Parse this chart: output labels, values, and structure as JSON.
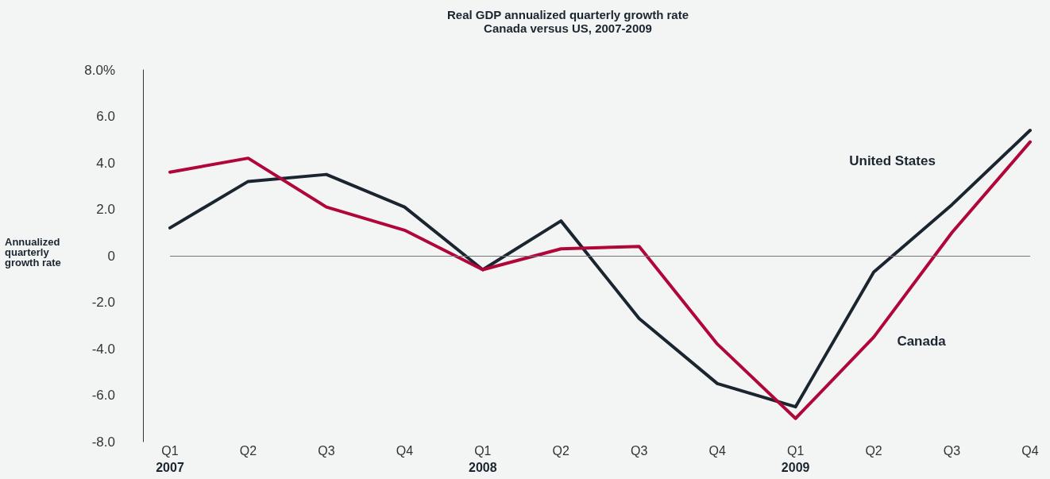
{
  "chart_data": {
    "type": "line",
    "title": "Real GDP annualized quarterly growth rate",
    "subtitle": "Canada versus US, 2007-2009",
    "ylabel": "Annualized quarterly growth rate",
    "categories": [
      "Q1\n2007",
      "Q2",
      "Q3",
      "Q4",
      "Q1\n2008",
      "Q2",
      "Q3",
      "Q4",
      "Q1\n2009",
      "Q2",
      "Q3",
      "Q4"
    ],
    "series": [
      {
        "name": "United States",
        "color": "#1b2530",
        "values": [
          1.2,
          3.2,
          3.5,
          2.1,
          -0.6,
          1.5,
          -2.7,
          -5.5,
          -6.5,
          -0.7,
          2.2,
          5.4
        ]
      },
      {
        "name": "Canada",
        "color": "#b0063a",
        "values": [
          3.6,
          4.2,
          2.1,
          1.1,
          -0.6,
          0.3,
          0.4,
          -3.8,
          -7.0,
          -3.5,
          1.0,
          4.9
        ]
      }
    ],
    "ylim": [
      -8,
      8
    ],
    "yticks": [
      {
        "value": 8,
        "label": "8.0%"
      },
      {
        "value": 6,
        "label": "6.0"
      },
      {
        "value": 4,
        "label": "4.0"
      },
      {
        "value": 2,
        "label": "2.0"
      },
      {
        "value": 0,
        "label": "0"
      },
      {
        "value": -2,
        "label": "-2.0"
      },
      {
        "value": -4,
        "label": "-4.0"
      },
      {
        "value": -6,
        "label": "-6.0"
      },
      {
        "value": -8,
        "label": "-8.0"
      }
    ],
    "ref_lines": [
      {
        "axis": "y",
        "value": 0,
        "color": "#777777",
        "line_style": "solid"
      }
    ],
    "grid": false,
    "legend": false,
    "marker": "none",
    "line_style": "solid"
  }
}
